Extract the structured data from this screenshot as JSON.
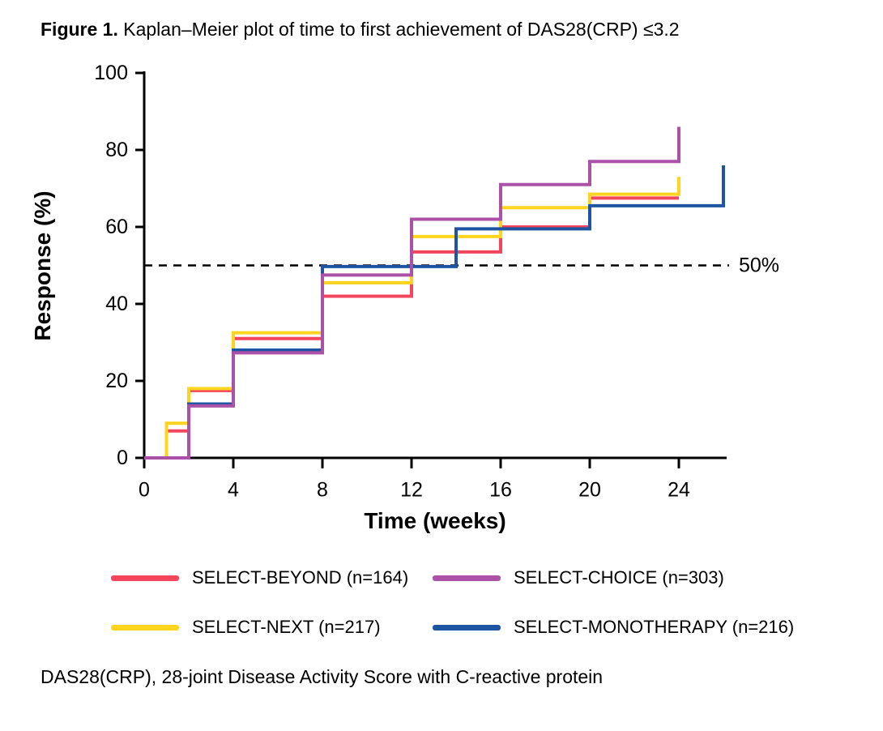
{
  "title": {
    "prefix": "Figure 1.",
    "text": " Kaplan–Meier plot of time to first achievement of DAS28(CRP) ≤3.2"
  },
  "chart_data": {
    "type": "line",
    "subtype": "kaplan-meier-step",
    "title": "Figure 1. Kaplan–Meier plot of time to first achievement of DAS28(CRP) ≤3.2",
    "xlabel": "Time (weeks)",
    "ylabel": "Response (%)",
    "xlim": [
      0,
      26.3
    ],
    "ylim": [
      0,
      100
    ],
    "xticks": [
      0,
      4,
      8,
      12,
      16,
      20,
      24
    ],
    "yticks": [
      0,
      20,
      40,
      60,
      80,
      100
    ],
    "grid": false,
    "legend_position": "bottom",
    "reference_line": {
      "value": 50,
      "label": "50%",
      "style": "dashed",
      "color": "#000000"
    },
    "series": [
      {
        "name": "SELECT-BEYOND (n=164)",
        "color": "#F3455B",
        "end_week": 24,
        "steps": [
          [
            0,
            0
          ],
          [
            1,
            7
          ],
          [
            2,
            17.5
          ],
          [
            4,
            31
          ],
          [
            8,
            42
          ],
          [
            12,
            53.5
          ],
          [
            16,
            60
          ],
          [
            20,
            67.5
          ]
        ]
      },
      {
        "name": "SELECT-NEXT (n=217)",
        "color": "#FFD41E",
        "end_week": 24,
        "steps": [
          [
            0,
            0
          ],
          [
            1,
            9
          ],
          [
            2,
            18
          ],
          [
            4,
            32.5
          ],
          [
            8,
            45.5
          ],
          [
            12,
            57.5
          ],
          [
            16,
            65
          ],
          [
            20,
            68.5
          ],
          [
            24,
            73
          ]
        ]
      },
      {
        "name": "SELECT-MONOTHERAPY (n=216)",
        "color": "#1E55A3",
        "end_week": 26,
        "steps": [
          [
            0,
            0
          ],
          [
            2,
            14
          ],
          [
            4,
            28
          ],
          [
            8,
            49.7
          ],
          [
            14,
            59.5
          ],
          [
            20,
            65.5
          ],
          [
            26,
            76
          ]
        ]
      },
      {
        "name": "SELECT-CHOICE (n=303)",
        "color": "#AC51A8",
        "end_week": 24,
        "steps": [
          [
            0,
            0
          ],
          [
            2,
            13.5
          ],
          [
            4,
            27.3
          ],
          [
            8,
            47.5
          ],
          [
            12,
            62
          ],
          [
            16,
            71
          ],
          [
            20,
            77
          ],
          [
            24,
            86
          ]
        ]
      }
    ]
  },
  "legend": {
    "items": [
      {
        "label": "SELECT-BEYOND (n=164)",
        "color": "#F3455B"
      },
      {
        "label": "SELECT-CHOICE (n=303)",
        "color": "#AC51A8"
      },
      {
        "label": "SELECT-NEXT (n=217)",
        "color": "#FFD41E"
      },
      {
        "label": "SELECT-MONOTHERAPY (n=216)",
        "color": "#1E55A3"
      }
    ]
  },
  "footnote": "DAS28(CRP), 28-joint Disease Activity Score with C-reactive protein"
}
